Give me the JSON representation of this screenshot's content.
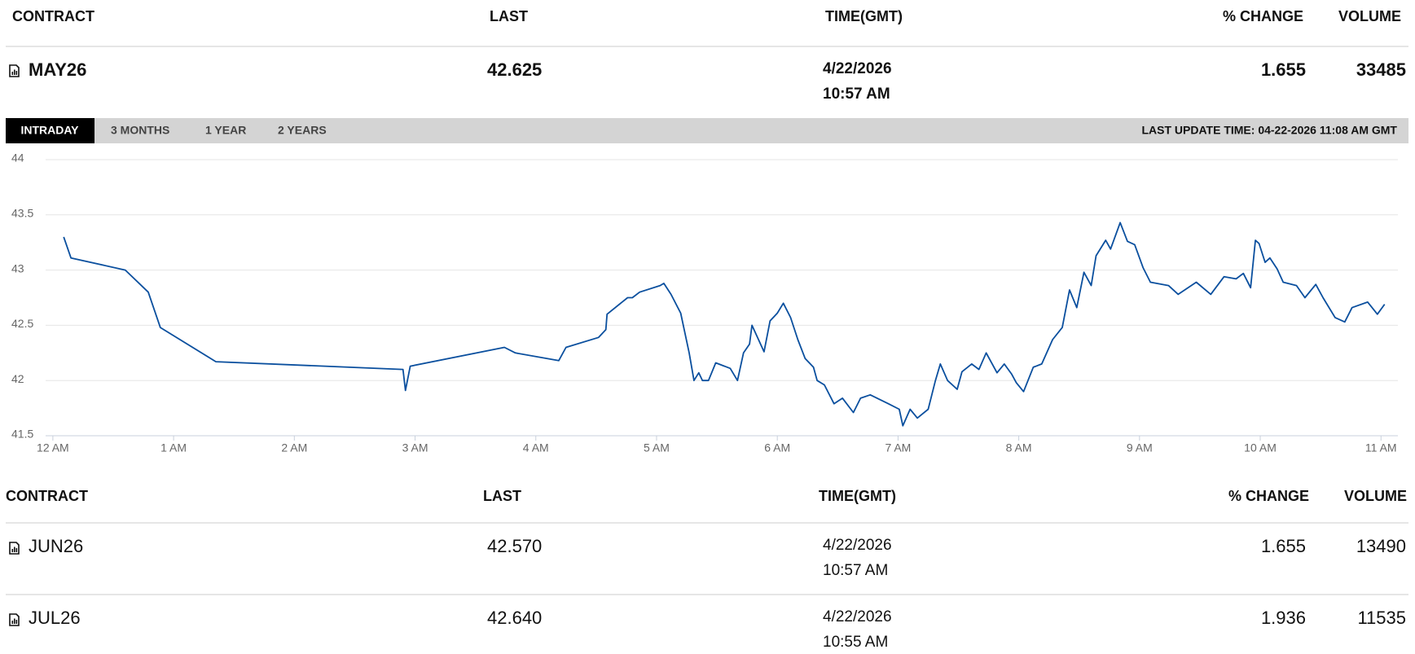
{
  "header": {
    "columns": [
      "CONTRACT",
      "LAST",
      "TIME(GMT)",
      "% CHANGE",
      "VOLUME"
    ]
  },
  "main_row": {
    "contract": "MAY26",
    "last": "42.625",
    "date": "4/22/2026",
    "time": "10:57 AM",
    "change": "1.655",
    "volume": "33485"
  },
  "tabs": [
    "INTRADAY",
    "3 MONTHS",
    "1 YEAR",
    "2 YEARS"
  ],
  "last_update": "LAST UPDATE TIME: 04-22-2026 11:08 AM GMT",
  "chart_data": {
    "type": "line",
    "color": "#0a4f9e",
    "grid": true,
    "x": [
      0.09,
      0.15,
      0.6,
      0.79,
      0.89,
      1.35,
      2.9,
      2.92,
      2.96,
      3.74,
      3.83,
      4.19,
      4.25,
      4.52,
      4.58,
      4.59,
      4.76,
      4.8,
      4.86,
      5.03,
      5.06,
      5.12,
      5.2,
      5.27,
      5.31,
      5.35,
      5.38,
      5.43,
      5.49,
      5.61,
      5.67,
      5.72,
      5.77,
      5.79,
      5.89,
      5.94,
      6.0,
      6.05,
      6.11,
      6.17,
      6.23,
      6.3,
      6.33,
      6.39,
      6.47,
      6.54,
      6.63,
      6.69,
      6.77,
      6.92,
      7.01,
      7.04,
      7.1,
      7.16,
      7.25,
      7.31,
      7.35,
      7.41,
      7.49,
      7.53,
      7.61,
      7.67,
      7.73,
      7.82,
      7.88,
      7.94,
      7.98,
      8.04,
      8.12,
      8.19,
      8.28,
      8.36,
      8.42,
      8.48,
      8.54,
      8.6,
      8.64,
      8.72,
      8.76,
      8.84,
      8.9,
      8.96,
      9.03,
      9.09,
      9.24,
      9.32,
      9.47,
      9.59,
      9.7,
      9.8,
      9.86,
      9.92,
      9.96,
      9.99,
      10.04,
      10.08,
      10.14,
      10.19,
      10.3,
      10.37,
      10.46,
      10.52,
      10.62,
      10.7,
      10.76,
      10.89,
      10.97,
      11.03
    ],
    "values": [
      43.3,
      43.11,
      43.0,
      42.8,
      42.48,
      42.17,
      42.1,
      41.91,
      42.13,
      42.3,
      42.25,
      42.18,
      42.3,
      42.39,
      42.46,
      42.6,
      42.75,
      42.75,
      42.8,
      42.86,
      42.88,
      42.78,
      42.61,
      42.25,
      42.0,
      42.07,
      42.0,
      42.0,
      42.16,
      42.11,
      42.0,
      42.25,
      42.33,
      42.5,
      42.26,
      42.54,
      42.61,
      42.7,
      42.57,
      42.37,
      42.2,
      42.12,
      42.0,
      41.96,
      41.79,
      41.84,
      41.71,
      41.84,
      41.87,
      41.79,
      41.74,
      41.59,
      41.74,
      41.66,
      41.74,
      42.0,
      42.15,
      42.0,
      41.92,
      42.08,
      42.15,
      42.1,
      42.25,
      42.07,
      42.15,
      42.06,
      41.98,
      41.9,
      42.12,
      42.15,
      42.37,
      42.48,
      42.82,
      42.66,
      42.98,
      42.86,
      43.13,
      43.27,
      43.19,
      43.43,
      43.26,
      43.23,
      43.02,
      42.89,
      42.86,
      42.78,
      42.89,
      42.78,
      42.94,
      42.92,
      42.97,
      42.84,
      43.27,
      43.24,
      43.07,
      43.11,
      43.01,
      42.89,
      42.86,
      42.75,
      42.87,
      42.75,
      42.57,
      42.53,
      42.66,
      42.71,
      42.6,
      42.69
    ],
    "xlim": [
      -0.06,
      11.14
    ],
    "ylim": [
      41.5,
      44
    ],
    "xticks": [
      {
        "value": 0,
        "label": "12 AM"
      },
      {
        "value": 1,
        "label": "1 AM"
      },
      {
        "value": 2,
        "label": "2 AM"
      },
      {
        "value": 3,
        "label": "3 AM"
      },
      {
        "value": 4,
        "label": "4 AM"
      },
      {
        "value": 5,
        "label": "5 AM"
      },
      {
        "value": 6,
        "label": "6 AM"
      },
      {
        "value": 7,
        "label": "7 AM"
      },
      {
        "value": 8,
        "label": "8 AM"
      },
      {
        "value": 9,
        "label": "9 AM"
      },
      {
        "value": 10,
        "label": "10 AM"
      },
      {
        "value": 11,
        "label": "11 AM"
      }
    ],
    "yticks": [
      41.5,
      42,
      42.5,
      43,
      43.5,
      44
    ]
  },
  "table": {
    "columns": [
      "CONTRACT",
      "LAST",
      "TIME(GMT)",
      "% CHANGE",
      "VOLUME"
    ],
    "rows": [
      [
        "JUN26",
        "42.570",
        "4/22/2026",
        "10:57 AM",
        "1.655",
        "13490"
      ],
      [
        "JUL26",
        "42.640",
        "4/22/2026",
        "10:55 AM",
        "1.936",
        "11535"
      ]
    ]
  }
}
